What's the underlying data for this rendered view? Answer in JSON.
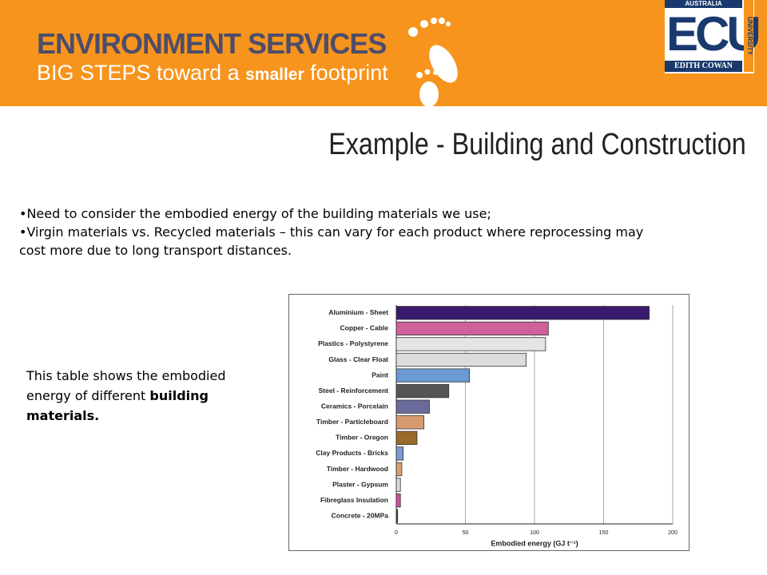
{
  "header": {
    "title": "ENVIRONMENT SERVICES",
    "tagline": [
      "BIG STEPS toward a ",
      "smaller",
      " footprint"
    ],
    "logo": {
      "top": "AUSTRALIA",
      "main": "ECU",
      "bottom": "EDITH COWAN",
      "side": "UNIVERSITY"
    }
  },
  "slide_title": "Example - Building and Construction",
  "bullets": [
    "Need to consider the embodied energy of the building materials we use;",
    "Virgin materials vs. Recycled materials – this can vary for each product where reprocessing may cost more due to long transport distances."
  ],
  "side_text": [
    "This table shows the embodied energy of different ",
    "building materials."
  ],
  "chart_data": {
    "type": "hbar",
    "categories": [
      "Aluminium - Sheet",
      "Copper - Cable",
      "Plastics - Polystyrene",
      "Glass - Clear Float",
      "Paint",
      "Steel - Reinforcement",
      "Ceramics - Porcelain",
      "Timber - Particleboard",
      "Timber - Oregon",
      "Clay Products - Bricks",
      "Timber - Hardwood",
      "Plaster - Gypsum",
      "Fibreglass Insulation",
      "Concrete - 20MPa"
    ],
    "values": [
      183,
      110,
      108,
      94,
      53,
      38,
      24,
      20,
      15,
      5,
      4,
      3,
      3,
      1
    ],
    "colors": [
      "#3a1a6e",
      "#d0609a",
      "#e4e4e4",
      "#dcdcdc",
      "#6a9ad4",
      "#555555",
      "#6a6a9a",
      "#d89a70",
      "#9a6a2a",
      "#7a9ad0",
      "#d8a070",
      "#d8d8d8",
      "#d050a0",
      "#444444"
    ],
    "xlabel": "Embodied energy (GJ t⁻¹)",
    "xlim": [
      0,
      200
    ],
    "xticks": [
      0,
      50,
      100,
      150,
      200
    ],
    "grid": true
  }
}
